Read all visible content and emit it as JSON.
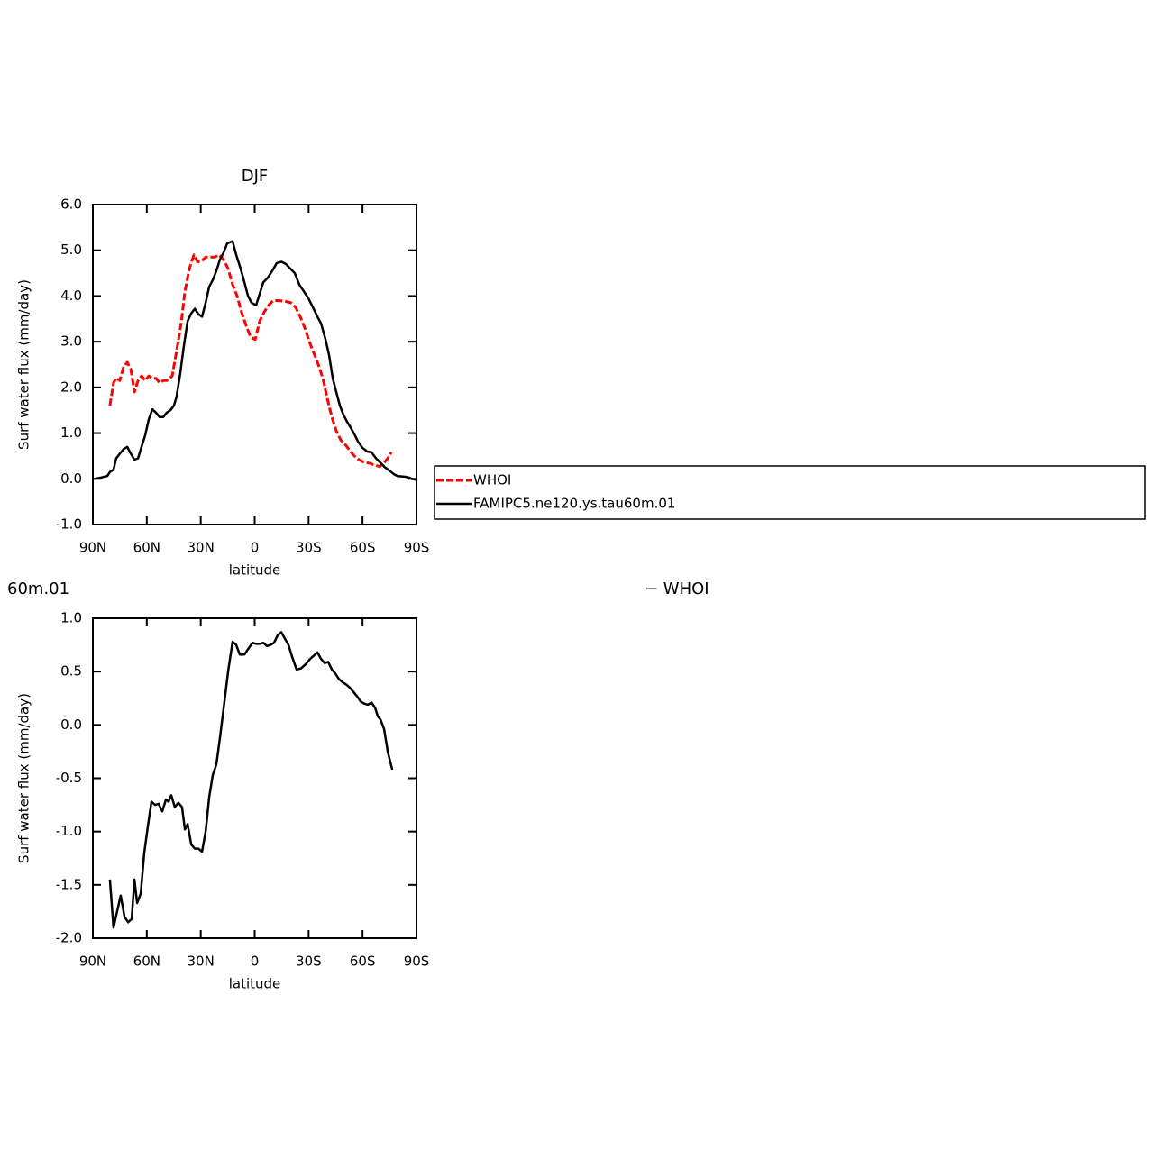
{
  "chart_data": [
    {
      "type": "line",
      "title": "DJF",
      "xlabel": "latitude",
      "ylabel": "Surf water flux (mm/day)",
      "xlim": [
        90,
        -90
      ],
      "xticks": [
        {
          "value": 90,
          "label": "90N"
        },
        {
          "value": 60,
          "label": "60N"
        },
        {
          "value": 30,
          "label": "30N"
        },
        0,
        {
          "value": -30,
          "label": "30S"
        },
        {
          "value": -60,
          "label": "60S"
        },
        {
          "value": -90,
          "label": "90S"
        }
      ],
      "ylim": [
        -1,
        6
      ],
      "yticks": [
        {
          "value": -1,
          "label": "-1.0"
        },
        {
          "value": 0,
          "label": "0.0"
        },
        {
          "value": 1,
          "label": "1.0"
        },
        {
          "value": 2,
          "label": "2.0"
        },
        {
          "value": 3,
          "label": "3.0"
        },
        {
          "value": 4,
          "label": "4.0"
        },
        {
          "value": 5,
          "label": "5.0"
        },
        {
          "value": 6,
          "label": "6.0"
        }
      ],
      "legend": true,
      "series": [
        {
          "name": "WHOI",
          "color": "#ff0000",
          "dashed": true,
          "x": [
            80.5,
            78.5,
            77.0,
            75.0,
            72.9,
            70.9,
            68.9,
            66.9,
            64.9,
            62.9,
            60.9,
            58.9,
            56.9,
            54.9,
            52.9,
            50.9,
            48.9,
            45.9,
            43.4,
            40.9,
            38.8,
            36.3,
            33.8,
            31.8,
            29.8,
            27.3,
            24.8,
            22.3,
            19.8,
            17.3,
            14.8,
            12.3,
            9.8,
            7.3,
            4.7,
            2.2,
            -0.3,
            -2.8,
            -5.3,
            -7.8,
            -10.3,
            -13.8,
            -17.3,
            -20.3,
            -22.8,
            -25.3,
            -27.9,
            -30.4,
            -32.9,
            -35.4,
            -37.9,
            -40.4,
            -42.9,
            -45.4,
            -47.9,
            -50.4,
            -52.9,
            -55.4,
            -57.9,
            -60.4,
            -63.9,
            -66.9,
            -69.5,
            -72.0,
            -74.0,
            -76.0
          ],
          "values": [
            1.6,
            2.1,
            2.2,
            2.15,
            2.45,
            2.55,
            2.4,
            1.9,
            2.15,
            2.25,
            2.15,
            2.25,
            2.2,
            2.2,
            2.1,
            2.15,
            2.15,
            2.25,
            2.8,
            3.4,
            4.1,
            4.6,
            4.9,
            4.75,
            4.75,
            4.85,
            4.85,
            4.85,
            4.9,
            4.8,
            4.6,
            4.25,
            4.0,
            3.65,
            3.35,
            3.1,
            3.05,
            3.45,
            3.65,
            3.8,
            3.9,
            3.9,
            3.88,
            3.85,
            3.75,
            3.55,
            3.3,
            3.0,
            2.75,
            2.5,
            2.2,
            1.75,
            1.35,
            1.05,
            0.85,
            0.75,
            0.62,
            0.5,
            0.42,
            0.37,
            0.34,
            0.3,
            0.27,
            0.35,
            0.45,
            0.58
          ]
        },
        {
          "name": "FAMIPC5.ne120.ys.tau60m.01",
          "color": "#000000",
          "dashed": false,
          "x": [
            89.0,
            85.5,
            82.0,
            80.5,
            78.5,
            77.0,
            75.0,
            72.9,
            70.9,
            68.9,
            66.9,
            64.9,
            62.9,
            60.9,
            58.9,
            56.9,
            54.9,
            52.9,
            50.9,
            48.9,
            46.9,
            44.9,
            43.4,
            41.4,
            39.4,
            37.3,
            35.3,
            33.3,
            31.3,
            29.3,
            27.3,
            25.3,
            23.3,
            21.3,
            19.3,
            17.3,
            15.3,
            12.3,
            10.3,
            7.8,
            5.7,
            3.7,
            1.7,
            -0.8,
            -2.8,
            -4.8,
            -7.3,
            -9.8,
            -12.3,
            -14.8,
            -17.3,
            -19.8,
            -22.3,
            -24.8,
            -27.4,
            -29.9,
            -32.4,
            -34.9,
            -36.9,
            -39.4,
            -41.4,
            -43.4,
            -45.4,
            -47.4,
            -49.4,
            -51.4,
            -53.4,
            -55.4,
            -57.4,
            -59.9,
            -62.5,
            -65.0,
            -67.5,
            -70.0,
            -72.5,
            -75.0,
            -77.5,
            -79.5,
            -82.5,
            -85.0,
            -87.5,
            -89.5
          ],
          "values": [
            0.0,
            0.03,
            0.06,
            0.15,
            0.2,
            0.45,
            0.55,
            0.65,
            0.7,
            0.55,
            0.42,
            0.45,
            0.7,
            0.95,
            1.3,
            1.52,
            1.45,
            1.35,
            1.35,
            1.45,
            1.5,
            1.6,
            1.8,
            2.3,
            2.9,
            3.45,
            3.62,
            3.72,
            3.6,
            3.55,
            3.85,
            4.2,
            4.35,
            4.55,
            4.8,
            4.95,
            5.15,
            5.2,
            4.9,
            4.6,
            4.3,
            4.0,
            3.85,
            3.8,
            4.05,
            4.3,
            4.4,
            4.55,
            4.72,
            4.75,
            4.7,
            4.6,
            4.5,
            4.25,
            4.1,
            3.95,
            3.75,
            3.55,
            3.4,
            3.05,
            2.7,
            2.2,
            1.9,
            1.6,
            1.4,
            1.25,
            1.12,
            0.98,
            0.82,
            0.68,
            0.6,
            0.58,
            0.45,
            0.35,
            0.25,
            0.18,
            0.1,
            0.06,
            0.05,
            0.04,
            0.0,
            -0.02
          ]
        }
      ]
    },
    {
      "type": "line",
      "title_parts": [
        "60m.01",
        "− WHOI"
      ],
      "xlabel": "latitude",
      "ylabel": "Surf water flux (mm/day)",
      "xlim": [
        90,
        -90
      ],
      "xticks": [
        {
          "value": 90,
          "label": "90N"
        },
        {
          "value": 60,
          "label": "60N"
        },
        {
          "value": 30,
          "label": "30N"
        },
        0,
        {
          "value": -30,
          "label": "30S"
        },
        {
          "value": -60,
          "label": "60S"
        },
        {
          "value": -90,
          "label": "90S"
        }
      ],
      "ylim": [
        -2,
        1
      ],
      "yticks": [
        {
          "value": -2,
          "label": "-2.0"
        },
        {
          "value": -1.5,
          "label": "-1.5"
        },
        {
          "value": -1,
          "label": "-1.0"
        },
        {
          "value": -0.5,
          "label": "-0.5"
        },
        {
          "value": 0,
          "label": "0.0"
        },
        0.5,
        {
          "value": 1,
          "label": "1.0"
        }
      ],
      "legend": false,
      "series": [
        {
          "color": "#000000",
          "dashed": false,
          "x": [
            80.5,
            78.5,
            76.5,
            74.5,
            72.4,
            70.4,
            68.4,
            66.9,
            65.4,
            63.4,
            61.4,
            59.4,
            57.4,
            55.4,
            53.4,
            51.4,
            49.4,
            47.9,
            46.4,
            44.4,
            42.4,
            40.4,
            38.8,
            37.3,
            35.3,
            33.3,
            31.3,
            29.3,
            27.3,
            25.3,
            23.3,
            21.3,
            19.3,
            16.8,
            14.8,
            12.3,
            10.3,
            8.3,
            5.7,
            3.7,
            1.2,
            -0.8,
            -2.8,
            -4.8,
            -6.8,
            -8.8,
            -10.8,
            -12.8,
            -14.8,
            -16.8,
            -18.8,
            -20.8,
            -23.3,
            -25.8,
            -28.4,
            -30.9,
            -32.9,
            -34.9,
            -36.9,
            -38.9,
            -40.9,
            -42.9,
            -44.9,
            -46.9,
            -48.9,
            -50.9,
            -52.9,
            -54.9,
            -56.9,
            -58.9,
            -60.9,
            -62.9,
            -65.0,
            -67.0,
            -68.5,
            -70.0,
            -72.0,
            -74.0,
            -76.5
          ],
          "values": [
            -1.45,
            -1.9,
            -1.75,
            -1.6,
            -1.8,
            -1.85,
            -1.82,
            -1.45,
            -1.67,
            -1.58,
            -1.2,
            -0.95,
            -0.72,
            -0.75,
            -0.74,
            -0.81,
            -0.7,
            -0.72,
            -0.66,
            -0.77,
            -0.73,
            -0.77,
            -0.98,
            -0.93,
            -1.12,
            -1.16,
            -1.16,
            -1.19,
            -1.0,
            -0.68,
            -0.47,
            -0.37,
            -0.12,
            0.22,
            0.5,
            0.78,
            0.75,
            0.66,
            0.66,
            0.71,
            0.77,
            0.76,
            0.76,
            0.77,
            0.74,
            0.75,
            0.77,
            0.84,
            0.87,
            0.81,
            0.75,
            0.64,
            0.52,
            0.53,
            0.57,
            0.62,
            0.65,
            0.68,
            0.62,
            0.58,
            0.59,
            0.52,
            0.48,
            0.43,
            0.4,
            0.38,
            0.35,
            0.31,
            0.27,
            0.22,
            0.2,
            0.19,
            0.21,
            0.16,
            0.08,
            0.05,
            -0.04,
            -0.25,
            -0.42
          ]
        }
      ]
    }
  ]
}
